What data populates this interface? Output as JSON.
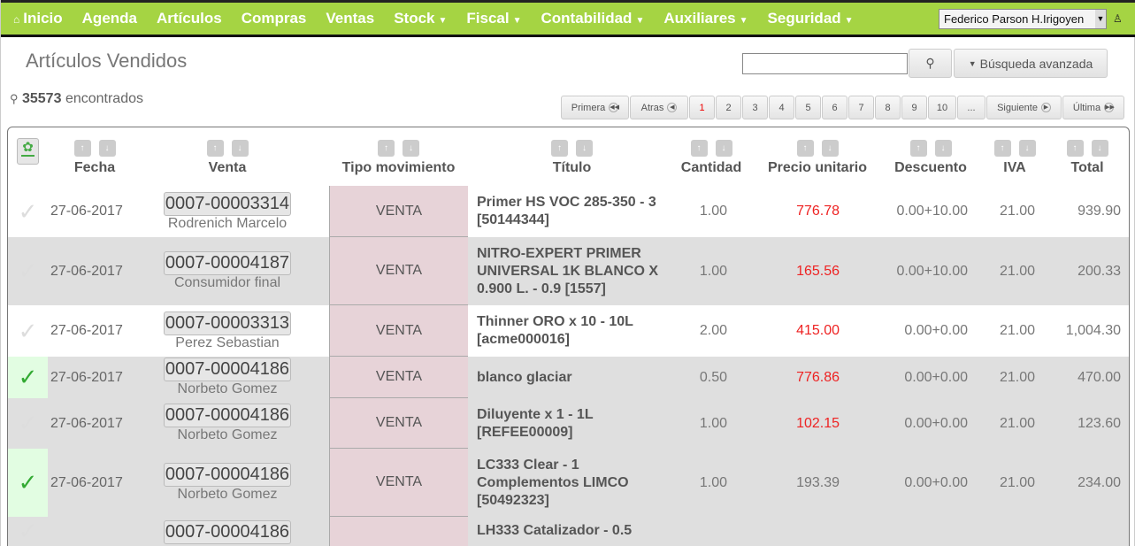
{
  "nav": {
    "items": [
      {
        "label": "Inicio",
        "icon": "home-icon"
      },
      {
        "label": "Agenda"
      },
      {
        "label": "Artículos"
      },
      {
        "label": "Compras"
      },
      {
        "label": "Ventas"
      },
      {
        "label": "Stock",
        "dropdown": true
      },
      {
        "label": "Fiscal",
        "dropdown": true
      },
      {
        "label": "Contabilidad",
        "dropdown": true
      },
      {
        "label": "Auxiliares",
        "dropdown": true
      },
      {
        "label": "Seguridad",
        "dropdown": true
      }
    ],
    "user": "Federico Parson H.Irigoyen",
    "accent": "#a5d443"
  },
  "page": {
    "title": "Artículos Vendidos",
    "search_placeholder": "",
    "advanced": "Búsqueda avanzada",
    "count": "35573",
    "count_suffix": "encontrados"
  },
  "pager": {
    "first": "Primera",
    "prev": "Atras",
    "pages": [
      "1",
      "2",
      "3",
      "4",
      "5",
      "6",
      "7",
      "8",
      "9",
      "10",
      "..."
    ],
    "current": "1",
    "next": "Siguiente",
    "last": "Última"
  },
  "columns": [
    "Fecha",
    "Venta",
    "Tipo movimiento",
    "Título",
    "Cantidad",
    "Precio unitario",
    "Descuento",
    "IVA",
    "Total"
  ],
  "rows": [
    {
      "checked": false,
      "fecha": "27-06-2017",
      "venta": "0007-00003314",
      "cliente": "Rodrenich Marcelo",
      "tipo": "VENTA",
      "titulo": "Primer HS VOC 285-350 - 3 [50144344]",
      "cantidad": "1.00",
      "precio": "776.78",
      "precio_red": true,
      "descuento": "0.00+10.00",
      "iva": "21.00",
      "total": "939.90"
    },
    {
      "checked": false,
      "fecha": "27-06-2017",
      "venta": "0007-00004187",
      "cliente": "Consumidor final",
      "tipo": "VENTA",
      "titulo": "NITRO-EXPERT PRIMER UNIVERSAL 1K BLANCO X 0.900 L. - 0.9 [1557]",
      "cantidad": "1.00",
      "precio": "165.56",
      "precio_red": true,
      "descuento": "0.00+10.00",
      "iva": "21.00",
      "total": "200.33"
    },
    {
      "checked": false,
      "fecha": "27-06-2017",
      "venta": "0007-00003313",
      "cliente": "Perez Sebastian",
      "tipo": "VENTA",
      "titulo": "Thinner ORO x 10 - 10L [acme000016]",
      "cantidad": "2.00",
      "precio": "415.00",
      "precio_red": true,
      "descuento": "0.00+0.00",
      "iva": "21.00",
      "total": "1,004.30"
    },
    {
      "checked": true,
      "fecha": "27-06-2017",
      "venta": "0007-00004186",
      "cliente": "Norbeto Gomez",
      "tipo": "VENTA",
      "titulo": "blanco glaciar",
      "cantidad": "0.50",
      "precio": "776.86",
      "precio_red": true,
      "descuento": "0.00+0.00",
      "iva": "21.00",
      "total": "470.00"
    },
    {
      "checked": false,
      "fecha": "27-06-2017",
      "venta": "0007-00004186",
      "cliente": "Norbeto Gomez",
      "tipo": "VENTA",
      "titulo": "Diluyente x 1 - 1L [REFEE00009]",
      "cantidad": "1.00",
      "precio": "102.15",
      "precio_red": true,
      "descuento": "0.00+0.00",
      "iva": "21.00",
      "total": "123.60"
    },
    {
      "checked": true,
      "fecha": "27-06-2017",
      "venta": "0007-00004186",
      "cliente": "Norbeto Gomez",
      "tipo": "VENTA",
      "titulo": "LC333 Clear - 1 Complementos LIMCO [50492323]",
      "cantidad": "1.00",
      "precio": "193.39",
      "precio_red": false,
      "descuento": "0.00+0.00",
      "iva": "21.00",
      "total": "234.00"
    },
    {
      "checked": false,
      "fecha": "",
      "venta": "0007-00004186",
      "cliente": "",
      "tipo": "",
      "titulo": "LH333 Catalizador - 0.5",
      "cantidad": "",
      "precio": "",
      "precio_red": false,
      "descuento": "",
      "iva": "",
      "total": ""
    }
  ]
}
